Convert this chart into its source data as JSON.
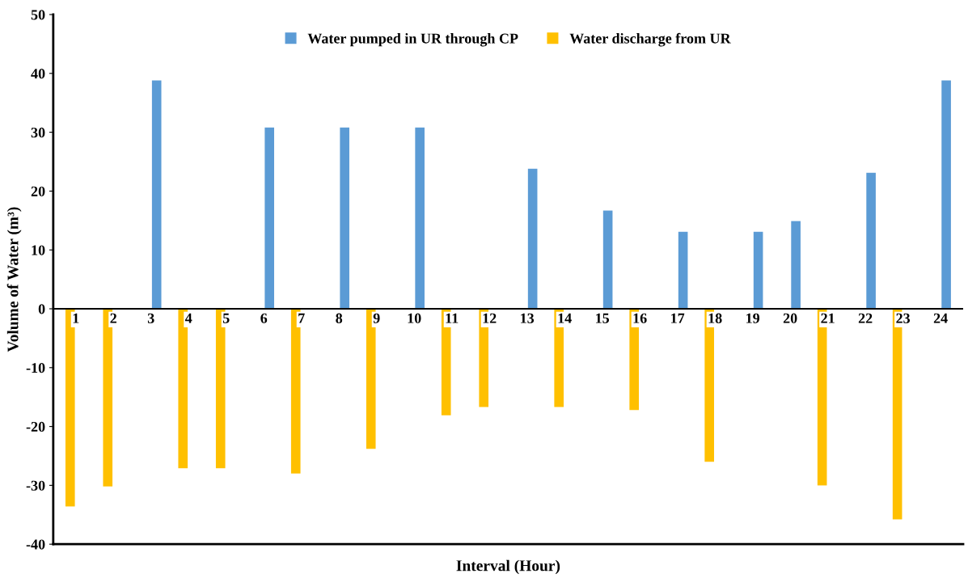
{
  "chart_data": {
    "type": "bar",
    "xlabel": "Interval (Hour)",
    "ylabel": "Volume of Water (m³)",
    "categories": [
      "1",
      "2",
      "3",
      "4",
      "5",
      "6",
      "7",
      "8",
      "9",
      "10",
      "11",
      "12",
      "13",
      "14",
      "15",
      "16",
      "17",
      "18",
      "19",
      "20",
      "21",
      "22",
      "23",
      "24"
    ],
    "series": [
      {
        "name": "Water pumped in UR through CP",
        "color": "#5b9bd5",
        "values": [
          null,
          null,
          38.8,
          null,
          null,
          30.8,
          null,
          30.8,
          null,
          30.8,
          null,
          null,
          23.8,
          null,
          16.7,
          null,
          13.1,
          null,
          13.1,
          14.9,
          null,
          23.1,
          null,
          38.8
        ]
      },
      {
        "name": "Water discharge from UR",
        "color": "#ffc000",
        "values": [
          -33.6,
          -30.2,
          null,
          -27.1,
          -27.1,
          null,
          -28.0,
          null,
          -23.8,
          null,
          -18.1,
          -16.7,
          null,
          -16.7,
          null,
          -17.2,
          null,
          -26.0,
          null,
          null,
          -30.0,
          null,
          -35.8,
          null
        ]
      }
    ],
    "ylim": [
      -40,
      50
    ],
    "yticks": [
      -40,
      -30,
      -20,
      -10,
      0,
      10,
      20,
      30,
      40,
      50
    ],
    "grid": false,
    "legend": "top"
  }
}
